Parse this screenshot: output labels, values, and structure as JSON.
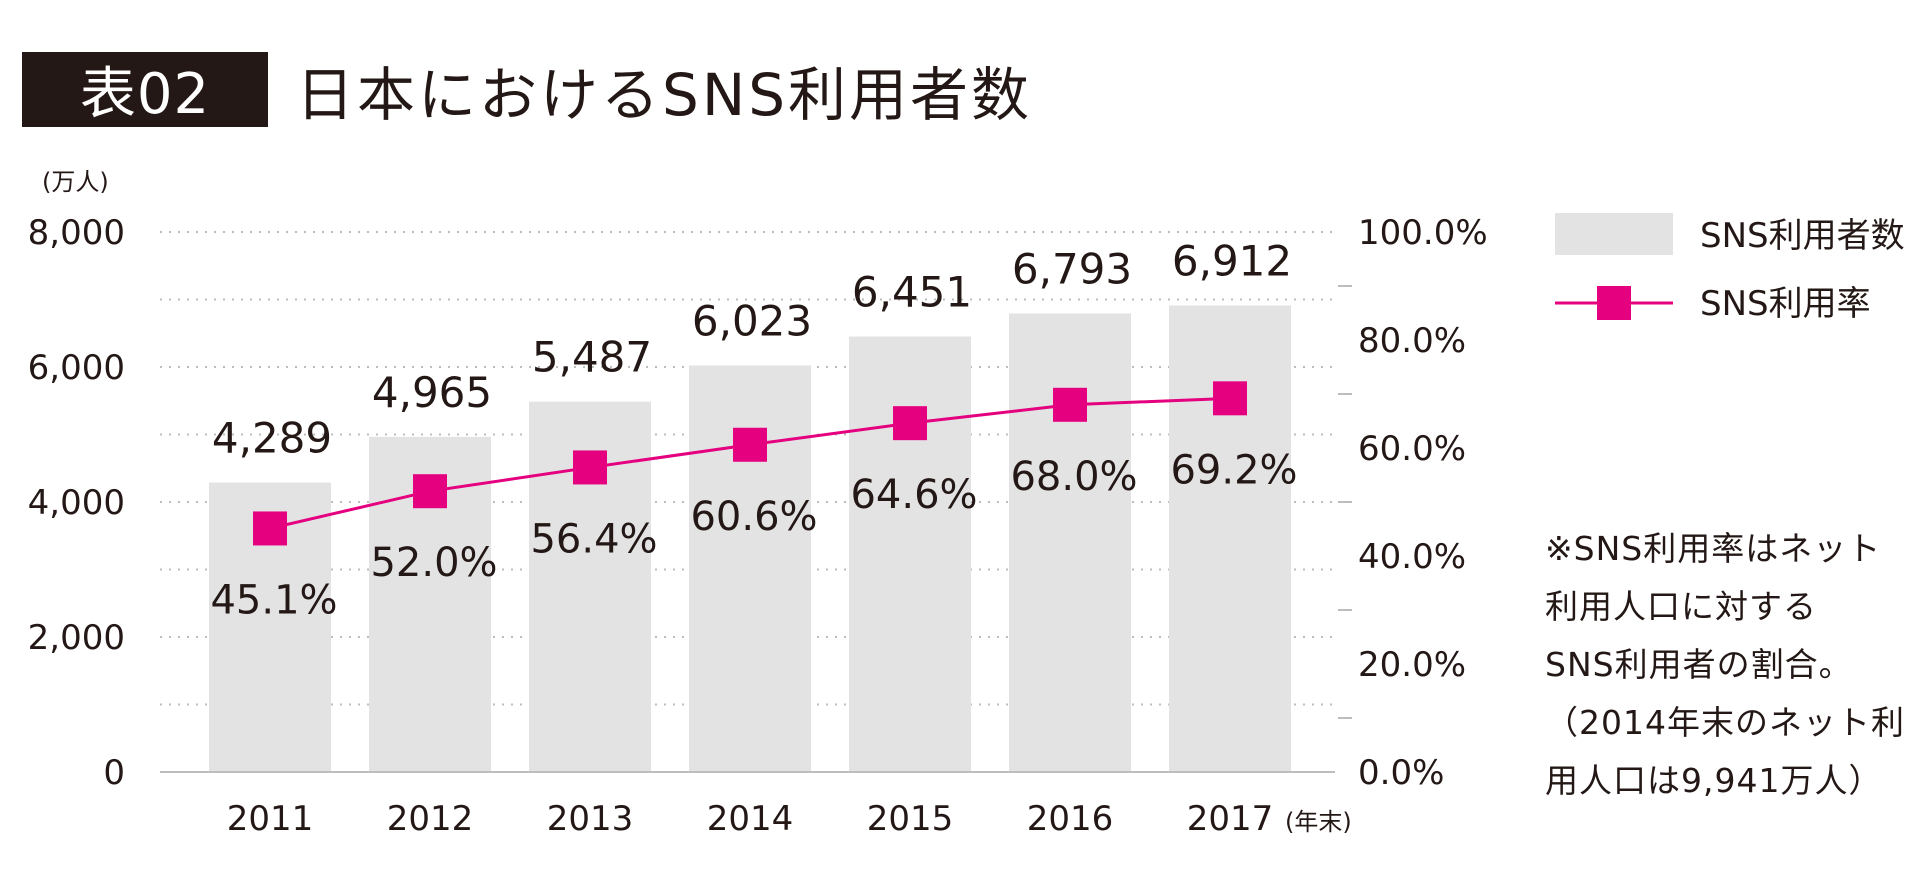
{
  "title": {
    "badge": "表02",
    "text": "日本におけるSNS利用者数"
  },
  "chart_data": {
    "type": "bar+line",
    "categories": [
      "2011",
      "2012",
      "2013",
      "2014",
      "2015",
      "2016",
      "2017"
    ],
    "x_unit": "(年末)",
    "y_left": {
      "unit": "(万人)",
      "ticks": [
        "8,000",
        "6,000",
        "4,000",
        "2,000",
        "0"
      ],
      "range": [
        0,
        8000
      ]
    },
    "y_right": {
      "ticks": [
        "100.0%",
        "80.0%",
        "60.0%",
        "40.0%",
        "20.0%",
        "0.0%"
      ],
      "range": [
        0,
        100
      ]
    },
    "series": [
      {
        "name": "SNS利用者数",
        "type": "bar",
        "color": "#e3e3e4",
        "values": [
          4289,
          4965,
          5487,
          6023,
          6451,
          6793,
          6912
        ],
        "labels": [
          "4,289",
          "4,965",
          "5,487",
          "6,023",
          "6,451",
          "6,793",
          "6,912"
        ]
      },
      {
        "name": "SNS利用率",
        "type": "line",
        "color": "#e4007f",
        "values": [
          45.1,
          52.0,
          56.4,
          60.6,
          64.6,
          68.0,
          69.2
        ],
        "labels": [
          "45.1%",
          "52.0%",
          "56.4%",
          "60.6%",
          "64.6%",
          "68.0%",
          "69.2%"
        ]
      }
    ],
    "grid": "dotted"
  },
  "note": "※SNS利用率はネット\n利用人口に対する\nSNS利用者の割合。\n（2014年末のネット利\n用人口は9,941万人）"
}
